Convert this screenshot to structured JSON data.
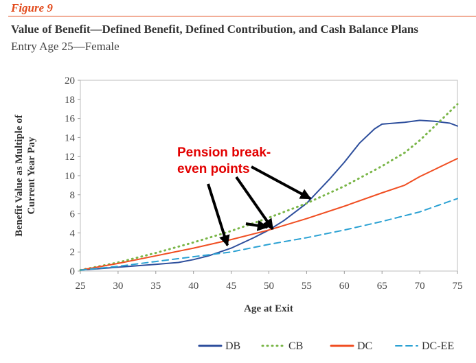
{
  "figure_label": "Figure 9",
  "title": "Value of Benefit—Defined Benefit, Defined Contribution, and Cash Balance Plans",
  "subtitle": "Entry Age 25—Female",
  "chart_data": {
    "type": "line",
    "xlabel": "Age at Exit",
    "ylabel_line1": "Benefit Value as Multiple of",
    "ylabel_line2": "Current Year Pay",
    "xlim": [
      25,
      75
    ],
    "ylim": [
      0,
      20
    ],
    "xticks": [
      "25",
      "30",
      "35",
      "40",
      "45",
      "50",
      "55",
      "60",
      "65",
      "70",
      "75"
    ],
    "yticks": [
      "0",
      "2",
      "4",
      "6",
      "8",
      "10",
      "12",
      "14",
      "16",
      "18",
      "20"
    ],
    "grid": false,
    "legend_position": "bottom",
    "annotation": {
      "line1": "Pension break-",
      "line2": "even points",
      "points": [
        [
          44.5,
          2.7
        ],
        [
          50.5,
          4.4
        ],
        [
          55.5,
          7.6
        ]
      ]
    },
    "series": [
      {
        "name": "DB",
        "color": "#2d4e9c",
        "style": "solid",
        "x": [
          25,
          30,
          35,
          38,
          40,
          42,
          45,
          48,
          50,
          52,
          55,
          58,
          60,
          62,
          64,
          65,
          68,
          70,
          72,
          74,
          75
        ],
        "y": [
          0.1,
          0.4,
          0.7,
          0.9,
          1.2,
          1.6,
          2.4,
          3.5,
          4.3,
          5.3,
          7.1,
          9.6,
          11.4,
          13.4,
          14.9,
          15.4,
          15.6,
          15.8,
          15.7,
          15.5,
          15.2
        ]
      },
      {
        "name": "CB",
        "color": "#7ab648",
        "style": "dotted",
        "x": [
          25,
          30,
          35,
          40,
          45,
          50,
          55,
          60,
          65,
          68,
          70,
          72,
          75
        ],
        "y": [
          0.1,
          0.9,
          1.9,
          3.0,
          4.2,
          5.6,
          7.1,
          8.9,
          11.0,
          12.4,
          13.7,
          15.2,
          17.5
        ]
      },
      {
        "name": "DC",
        "color": "#f04e22",
        "style": "solid",
        "x": [
          25,
          30,
          35,
          40,
          45,
          50,
          55,
          60,
          65,
          68,
          70,
          75
        ],
        "y": [
          0.1,
          0.8,
          1.6,
          2.4,
          3.3,
          4.3,
          5.5,
          6.8,
          8.2,
          9.0,
          9.9,
          11.8
        ]
      },
      {
        "name": "DC-EE",
        "color": "#2aa1d3",
        "style": "dashed",
        "x": [
          25,
          30,
          35,
          40,
          45,
          50,
          55,
          60,
          65,
          70,
          75
        ],
        "y": [
          0.1,
          0.5,
          1.0,
          1.5,
          2.0,
          2.8,
          3.5,
          4.3,
          5.2,
          6.2,
          7.6
        ]
      }
    ]
  }
}
